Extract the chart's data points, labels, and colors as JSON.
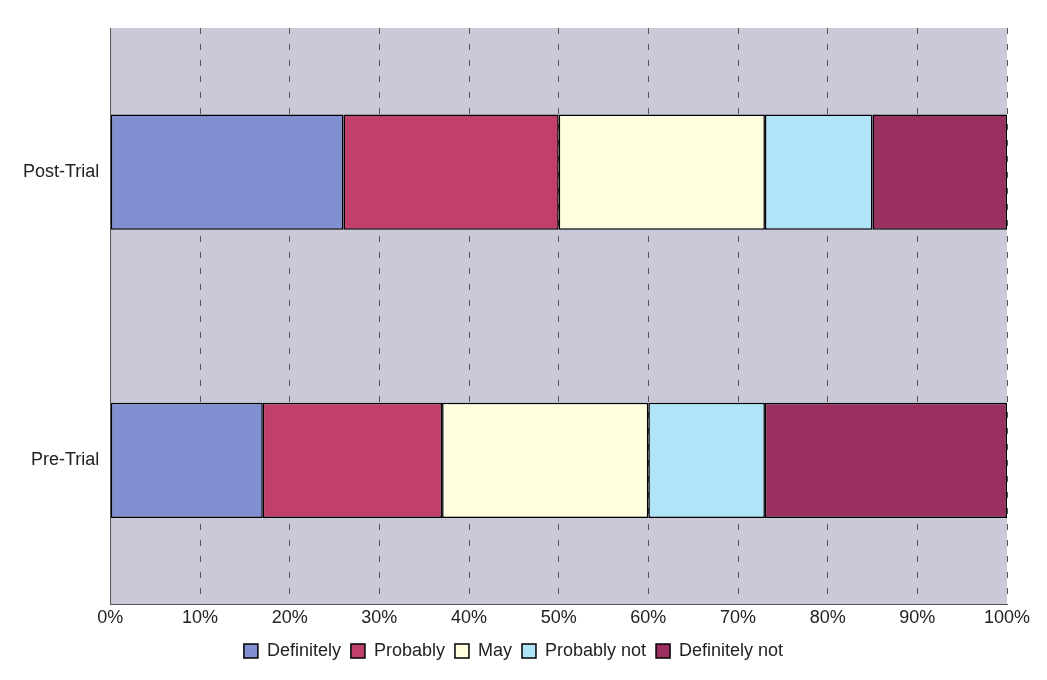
{
  "chart_data": {
    "type": "bar",
    "orientation": "horizontal",
    "stacked": true,
    "categories": [
      "Post-Trial",
      "Pre-Trial"
    ],
    "series": [
      {
        "name": "Definitely",
        "color": "#8090d0",
        "values": [
          26,
          17
        ]
      },
      {
        "name": "Probably",
        "color": "#c0406a",
        "values": [
          24,
          20
        ]
      },
      {
        "name": "May",
        "color": "#ffffe0",
        "values": [
          23,
          23
        ]
      },
      {
        "name": "Probably not",
        "color": "#b0e4f8",
        "values": [
          12,
          13
        ]
      },
      {
        "name": "Definitely not",
        "color": "#9a3060",
        "values": [
          15,
          27
        ]
      }
    ],
    "xlim": [
      0,
      100
    ],
    "xticks": [
      {
        "value": 0,
        "label": "0%"
      },
      {
        "value": 10,
        "label": "10%"
      },
      {
        "value": 20,
        "label": "20%"
      },
      {
        "value": 30,
        "label": "30%"
      },
      {
        "value": 40,
        "label": "40%"
      },
      {
        "value": 50,
        "label": "50%"
      },
      {
        "value": 60,
        "label": "60%"
      },
      {
        "value": 70,
        "label": "70%"
      },
      {
        "value": 80,
        "label": "80%"
      },
      {
        "value": 90,
        "label": "90%"
      },
      {
        "value": 100,
        "label": "100%"
      }
    ],
    "grid": "x",
    "legend": "bottom"
  }
}
